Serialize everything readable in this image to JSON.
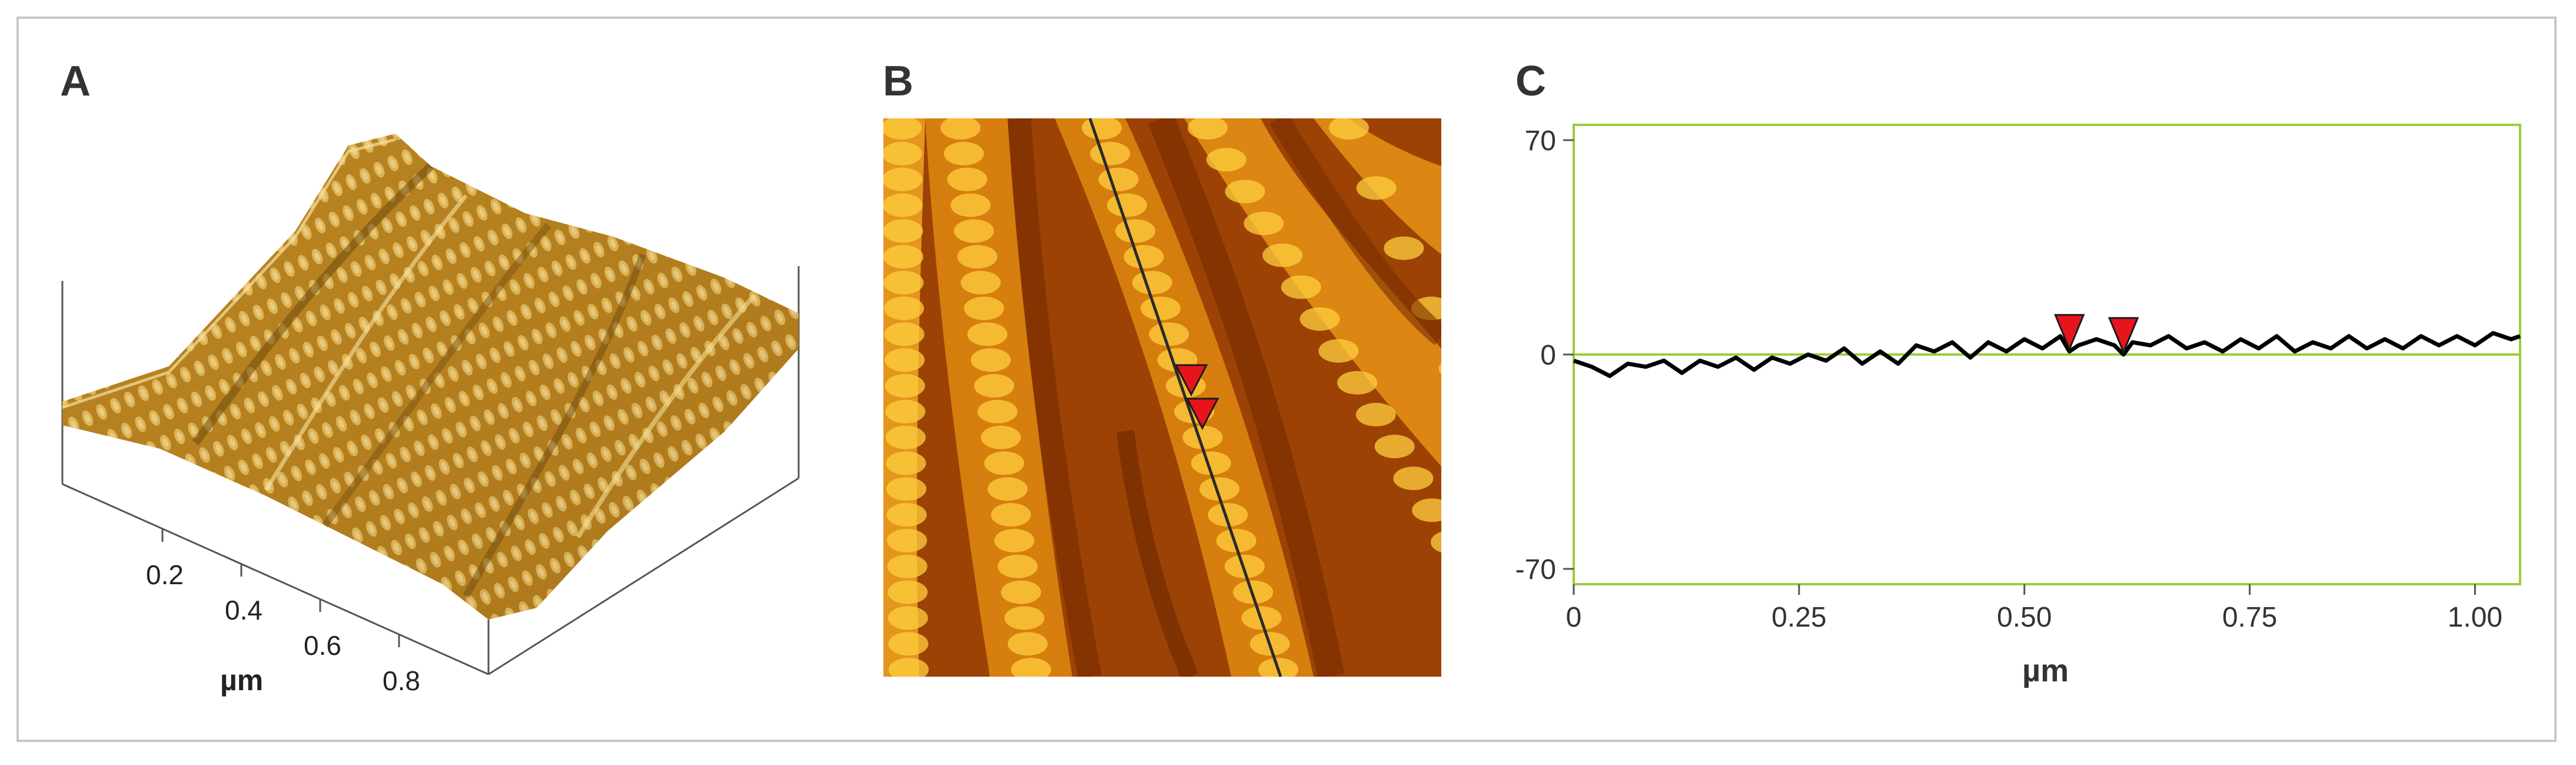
{
  "figure": {
    "panels": [
      {
        "letter": "A",
        "axis_label": "µm",
        "tick_labels": [
          "0.2",
          "0.4",
          "0.6",
          "0.8"
        ]
      },
      {
        "letter": "B"
      },
      {
        "letter": "C"
      }
    ]
  },
  "colors": {
    "frame": "#c8c8c8",
    "plot_border": "#9ccc3c",
    "zero_line": "#9ccc3c",
    "profile_line": "#000000",
    "marker": "#e8141c",
    "afm_dark": "#7a2e00",
    "afm_mid": "#d67a10",
    "afm_light": "#ffd84a",
    "relief_dark": "#6b4a10",
    "relief_light": "#e8c060"
  },
  "chart_data": {
    "type": "line",
    "title": "",
    "xlabel": "µm",
    "ylabel": "",
    "xlim": [
      0,
      1.05
    ],
    "ylim": [
      -75,
      75
    ],
    "xticks": [
      0,
      0.25,
      0.5,
      0.75,
      1.0
    ],
    "xtick_labels": [
      "0",
      "0.25",
      "0.50",
      "0.75",
      "1.00"
    ],
    "yticks": [
      70,
      0,
      -70
    ],
    "ytick_labels": [
      "70",
      "0",
      "-70"
    ],
    "grid": false,
    "reference_line_y": 0,
    "markers_x": [
      0.55,
      0.61
    ],
    "series": [
      {
        "x": [
          0,
          0.02,
          0.04,
          0.06,
          0.08,
          0.1,
          0.12,
          0.14,
          0.16,
          0.18,
          0.2,
          0.22,
          0.24,
          0.26,
          0.28,
          0.3,
          0.32,
          0.34,
          0.36,
          0.38,
          0.4,
          0.42,
          0.44,
          0.46,
          0.48,
          0.5,
          0.52,
          0.54,
          0.55,
          0.56,
          0.58,
          0.6,
          0.61,
          0.62,
          0.64,
          0.66,
          0.68,
          0.7,
          0.72,
          0.74,
          0.76,
          0.78,
          0.8,
          0.82,
          0.84,
          0.86,
          0.88,
          0.9,
          0.92,
          0.94,
          0.96,
          0.98,
          1.0,
          1.02,
          1.04,
          1.05
        ],
        "y": [
          -2,
          -4,
          -7,
          -3,
          -4,
          -2,
          -6,
          -2,
          -4,
          -1,
          -5,
          -1,
          -3,
          0,
          -2,
          2,
          -3,
          1,
          -3,
          3,
          1,
          4,
          -1,
          4,
          1,
          5,
          2,
          6,
          1,
          3,
          5,
          3,
          0,
          4,
          3,
          6,
          2,
          4,
          1,
          5,
          2,
          6,
          1,
          4,
          2,
          6,
          2,
          5,
          2,
          6,
          3,
          6,
          3,
          7,
          5,
          6
        ]
      }
    ]
  }
}
